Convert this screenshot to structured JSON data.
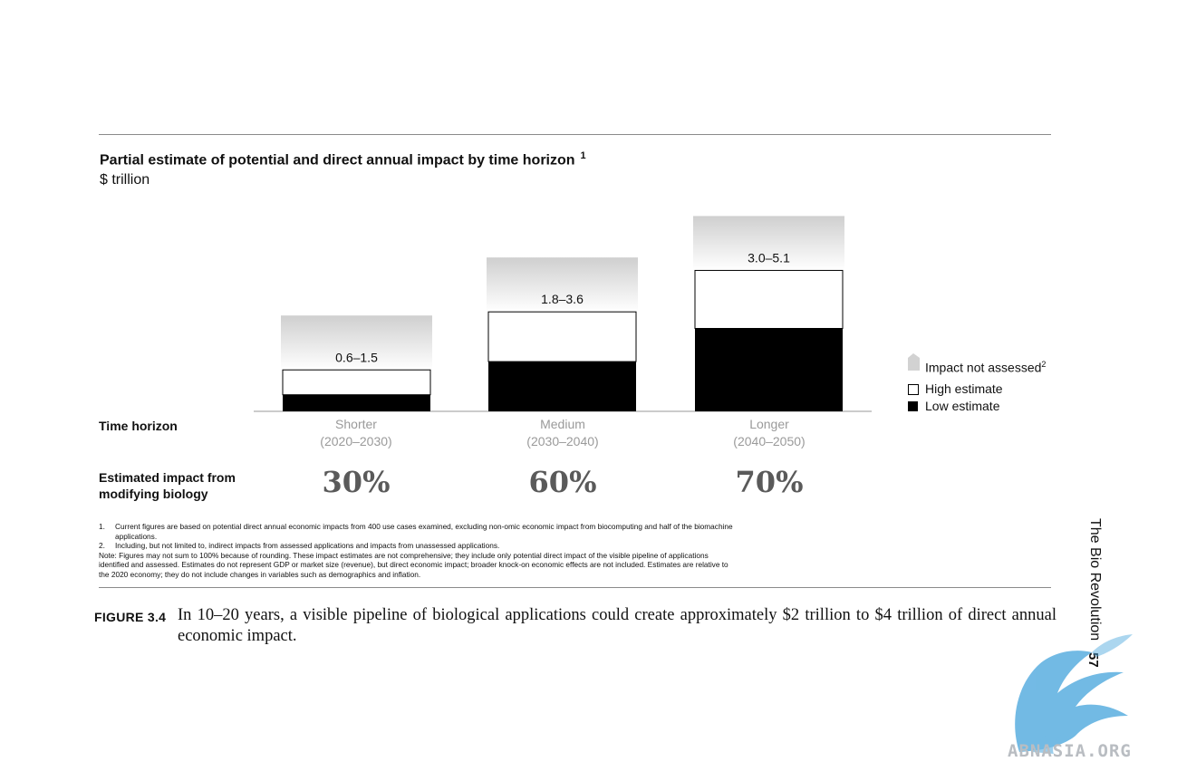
{
  "chart_data": {
    "type": "bar",
    "title": "Partial estimate of potential and direct annual impact by time horizon",
    "title_footnote": "1",
    "unit": "$ trillion",
    "categories": [
      {
        "name": "Shorter",
        "period": "(2020–2030)",
        "low": 0.6,
        "high": 1.5,
        "range_label": "0.6–1.5",
        "biology_share": "30%"
      },
      {
        "name": "Medium",
        "period": "(2030–2040)",
        "low": 1.8,
        "high": 3.6,
        "range_label": "1.8–3.6",
        "biology_share": "60%"
      },
      {
        "name": "Longer",
        "period": "(2040–2050)",
        "low": 3.0,
        "high": 5.1,
        "range_label": "3.0–5.1",
        "biology_share": "70%"
      }
    ],
    "series": [
      {
        "name": "Low estimate",
        "color": "#000000"
      },
      {
        "name": "High estimate",
        "color": "#ffffff"
      },
      {
        "name": "Impact not assessed",
        "color": "#d6d6d6"
      }
    ],
    "legend": [
      {
        "label": "Impact not assessed",
        "sup": "2"
      },
      {
        "label": "High estimate",
        "sup": ""
      },
      {
        "label": "Low estimate",
        "sup": ""
      }
    ],
    "legend_position": "right",
    "row_labels": {
      "time_horizon": "Time horizon",
      "impact_line1": "Estimated impact from",
      "impact_line2": "modifying biology"
    }
  },
  "notes": [
    {
      "num": "1.",
      "text": "Current figures are based on potential direct annual economic impacts from 400 use cases examined, excluding non-omic economic impact from biocomputing and half of the biomachine applications."
    },
    {
      "num": "2.",
      "text": "Including, but not limited to, indirect impacts from assessed applications and impacts from unassessed applications."
    },
    {
      "num": "",
      "text": "Note: Figures may not sum to 100% because of rounding. These impact estimates are not comprehensive; they include only potential direct impact of the visible pipeline of applications identified and assessed. Estimates do not represent GDP or market size (revenue), but direct economic impact; broader knock-on economic effects are not included. Estimates are relative to the 2020 economy; they do not include changes in variables such as demographics and inflation."
    }
  ],
  "figure": {
    "label": "FIGURE 3.4",
    "caption": "In 10–20 years, a visible pipeline of biological applications could create approximately $2 trillion to $4 trillion of direct annual economic impact."
  },
  "running_head": "The Bio Revolution",
  "page_number": "57",
  "watermark": "ABNASIA.ORG"
}
